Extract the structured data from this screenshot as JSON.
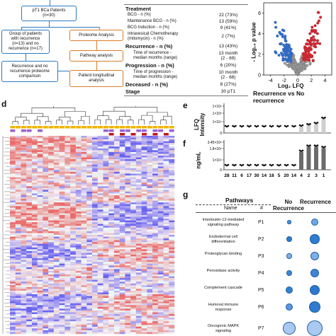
{
  "flowchart": {
    "top": "pT1 BCa Patients\n(n=30)",
    "group": "Group of patients\nwith recurrence\n(n=13) and no\nrecurrence (n=17)",
    "comparison": "Recurrence and no\nrecurrence proteome\ncomparison",
    "proteome": "Proteome Analysis",
    "pathway": "Pathway analysis",
    "longitudinal": "Patient longitudinal\nanalysis"
  },
  "table": {
    "rows": [
      {
        "label": "Treatment",
        "value": "",
        "bold": true
      },
      {
        "label": "BCG - n (%)",
        "value": "22 (73%)",
        "bold": false
      },
      {
        "label": "Maintenance  BCG - n (%)",
        "value": "13 (59%)",
        "bold": false
      },
      {
        "label": "BCG Induction - n (%)",
        "value": "9 (41%)",
        "bold": false
      },
      {
        "label": "Intravesical Chemotherapy\n(mitomycin) - n (%)",
        "value": "2 (7%)",
        "bold": false
      },
      {
        "label": "Recurrence - n (%)",
        "value": "13 (43%)",
        "bold": true
      },
      {
        "label": "Time of recurrence -\nmedian months (range)",
        "value": "13 month\n(2 - 69)",
        "bold": false
      },
      {
        "label": "Progression - n (%)",
        "value": "6 (20%)",
        "bold": true
      },
      {
        "label": "Time of progression -\nmedian months (range)",
        "value": "10 month\n(2 - 68)",
        "bold": false
      },
      {
        "label": "Deceased - n (%)",
        "value": "8 (27%)",
        "bold": true
      },
      {
        "label": "Stage",
        "value": "30 pT1",
        "bold": true
      }
    ]
  },
  "volcano": {
    "ylabel": "- Log₁₀ p value",
    "xlabel": "Log₂ LFQ",
    "title": "Recurrence vs No recurrence",
    "yticks": [
      "6",
      "4",
      "2",
      "0"
    ],
    "xticks": [
      "-4",
      "-2",
      "0",
      "2",
      "4"
    ]
  },
  "panel_labels": {
    "d": "d",
    "e": "e",
    "f": "f",
    "g": "g"
  },
  "panel_e": {
    "ylabel": "LFQ\nIntensity",
    "yticks": [
      "1×10⁶",
      "1×10⁵",
      "1×10⁴",
      "0"
    ]
  },
  "panel_f": {
    "ylabel": "ng/mL",
    "yticks": [
      "3.45×10⁶",
      "1.8×10⁶",
      "1×10⁴",
      "0"
    ],
    "xticks": [
      "28",
      "11",
      "6",
      "17",
      "30",
      "14",
      "18",
      "5",
      "20",
      "14",
      "4",
      "2",
      "3",
      "1"
    ]
  },
  "pathways": {
    "header_pathways": "Pathways",
    "header_name": "Name",
    "header_hash": "#",
    "header_no_recurrence": "No\nRecurrence",
    "header_recurrence": "Recurrence",
    "items": [
      {
        "name": "Interleukin-12-mediated\nsignaling pathway",
        "id": "P1",
        "no_rec": 0.25,
        "rec": 0.45,
        "color_no": "#4a8fd9",
        "color_rec": "#6fa7e6"
      },
      {
        "name": "Endodermal cell\ndifferentiation",
        "id": "P2",
        "no_rec": 0.35,
        "rec": 0.6,
        "color_no": "#2f7bd0",
        "color_rec": "#2f7bd0"
      },
      {
        "name": "Proteoglycan binding",
        "id": "P3",
        "no_rec": 0.35,
        "rec": 0.55,
        "color_no": "#7fb0e8",
        "color_rec": "#7fb0e8"
      },
      {
        "name": "Peroxidase activity",
        "id": "P4",
        "no_rec": 0.35,
        "rec": 0.55,
        "color_no": "#3d86d6",
        "color_rec": "#3d86d6"
      },
      {
        "name": "Complement cascade",
        "id": "P5",
        "no_rec": 0.45,
        "rec": 0.65,
        "color_no": "#3480d3",
        "color_rec": "#2d78cc"
      },
      {
        "name": "Humoral immune\nresponse",
        "id": "P6",
        "no_rec": 0.45,
        "rec": 0.7,
        "color_no": "#5896dd",
        "color_rec": "#2f7bd0"
      },
      {
        "name": "Oncogenic MAPK\nsignaling",
        "id": "P7",
        "no_rec": 0.8,
        "rec": 1.0,
        "color_no": "#a9c9f0",
        "color_rec": "#a9c9f0"
      }
    ]
  },
  "colors": {
    "flow_blue": "#2a7bbf",
    "flow_orange": "#d97c2a",
    "up": "#e0202c",
    "down": "#2b6fd6",
    "ns": "#9a9a9a"
  }
}
